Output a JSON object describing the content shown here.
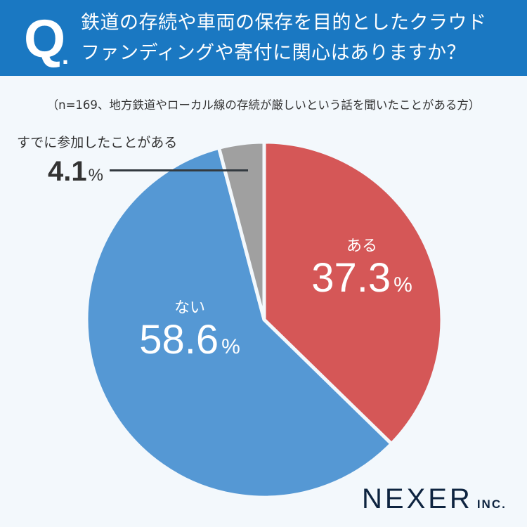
{
  "header": {
    "q_mark": "Q",
    "q_dot": ".",
    "question_line1": "鉄道の存続や車両の保存を目的としたクラウド",
    "question_line2": "ファンディングや寄付に関心はありますか？"
  },
  "note": "（n=169、地方鉄道やローカル線の存続が厳しいという話を聞いたことがある方）",
  "slices": [
    {
      "label": "ある",
      "value": "37.3",
      "unit": "%",
      "color": "#d55757"
    },
    {
      "label": "ない",
      "value": "58.6",
      "unit": "%",
      "color": "#5598d4"
    },
    {
      "label": "すでに参加したことがある",
      "value": "4.1",
      "unit": "%",
      "color": "#a0a0a0"
    }
  ],
  "logo": {
    "main": "NEXER",
    "sub": "INC."
  },
  "chart_data": {
    "type": "pie",
    "title": "鉄道の存続や車両の保存を目的としたクラウドファンディングや寄付に関心はありますか？",
    "subtitle": "（n=169、地方鉄道やローカル線の存続が厳しいという話を聞いたことがある方）",
    "categories": [
      "ある",
      "ない",
      "すでに参加したことがある"
    ],
    "values": [
      37.3,
      58.6,
      4.1
    ],
    "colors": [
      "#d55757",
      "#5598d4",
      "#a0a0a0"
    ],
    "start_angle": "12 o'clock, clockwise",
    "unit": "%"
  }
}
